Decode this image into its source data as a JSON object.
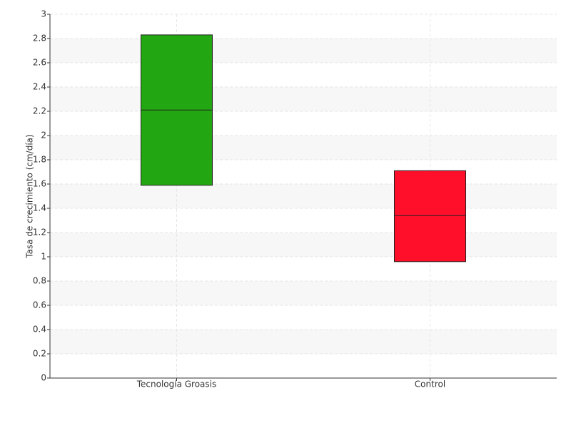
{
  "chart_data": {
    "type": "box",
    "y_label": "Tasa de crecimiento (cm/día)",
    "categories": [
      "Tecnología Groasis",
      "Control"
    ],
    "low": [
      1.59,
      0.96
    ],
    "median": [
      2.21,
      1.34
    ],
    "high": [
      2.83,
      1.71
    ],
    "colors": [
      "#22a612",
      "#ff0f2a"
    ],
    "ylim": [
      0,
      3
    ],
    "yticks": [
      0,
      0.2,
      0.4,
      0.6,
      0.8,
      1,
      1.2,
      1.4,
      1.6,
      1.8,
      2,
      2.2,
      2.4,
      2.6,
      2.8,
      3
    ],
    "grid": true
  }
}
